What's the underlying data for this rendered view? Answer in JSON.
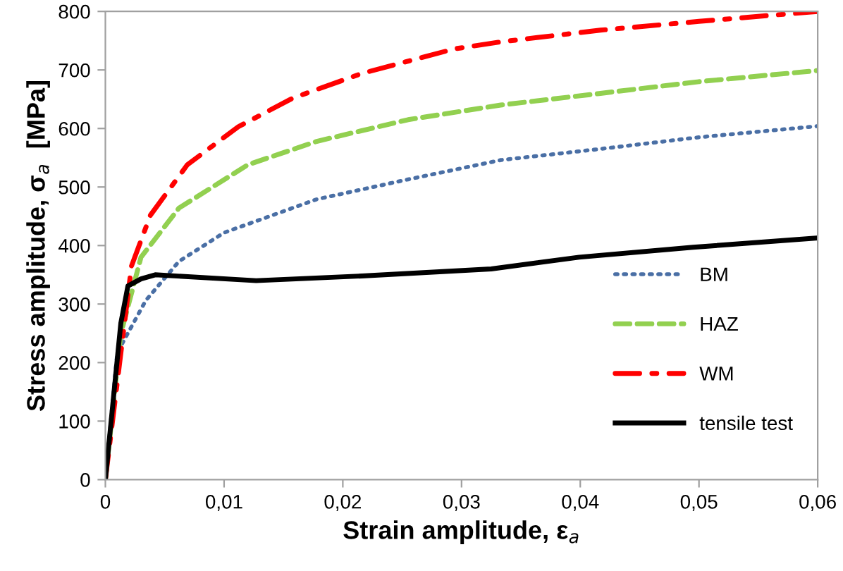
{
  "chart_data": {
    "type": "line",
    "xlabel": "Strain amplitude, ε$_{a}$",
    "ylabel": "Stress amplitude, σ$_{a}$  [MPa]",
    "xlim": [
      0,
      0.06
    ],
    "ylim": [
      0,
      800
    ],
    "xticks": [
      0,
      {
        "value": 0.01,
        "label": "0,01"
      },
      {
        "value": 0.02,
        "label": "0,02"
      },
      {
        "value": 0.03,
        "label": "0,03"
      },
      {
        "value": 0.04,
        "label": "0,04"
      },
      {
        "value": 0.05,
        "label": "0,05"
      },
      {
        "value": 0.06,
        "label": "0,06"
      }
    ],
    "yticks": [
      0,
      100,
      200,
      300,
      400,
      500,
      600,
      700,
      800
    ],
    "grid": false,
    "legend": "bottom right",
    "series": [
      {
        "name": "BM",
        "color": "#4a6fa5",
        "line_style": "dotted",
        "x": [
          0,
          0.001,
          0.0034,
          0.0062,
          0.01,
          0.0178,
          0.0255,
          0.0333,
          0.0417,
          0.05,
          0.06
        ],
        "values": [
          0,
          217,
          306,
          373,
          422,
          479,
          513,
          546,
          565,
          585,
          604
        ]
      },
      {
        "name": "HAZ",
        "color": "#92d050",
        "line_style": "dashed",
        "x": [
          0,
          0.0013,
          0.003,
          0.0062,
          0.012,
          0.0178,
          0.0255,
          0.0333,
          0.0417,
          0.05,
          0.06
        ],
        "values": [
          0,
          249,
          380,
          464,
          538,
          578,
          615,
          640,
          660,
          680,
          699
        ]
      },
      {
        "name": "WM",
        "color": "#ff0000",
        "line_style": "dashdot",
        "x": [
          0,
          0.0022,
          0.0038,
          0.0069,
          0.0112,
          0.0158,
          0.0216,
          0.0294,
          0.0333,
          0.0417,
          0.05,
          0.06
        ],
        "values": [
          0,
          365,
          452,
          538,
          603,
          652,
          694,
          736,
          748,
          768,
          783,
          800
        ]
      },
      {
        "name": "tensile test",
        "color": "#000000",
        "line_style": "solid",
        "x": [
          0,
          0.0013,
          0.0019,
          0.003,
          0.0042,
          0.0127,
          0.0216,
          0.0325,
          0.0399,
          0.0495,
          0.06
        ],
        "values": [
          0,
          267,
          331,
          343,
          350,
          340,
          348,
          360,
          380,
          397,
          413
        ]
      }
    ]
  }
}
